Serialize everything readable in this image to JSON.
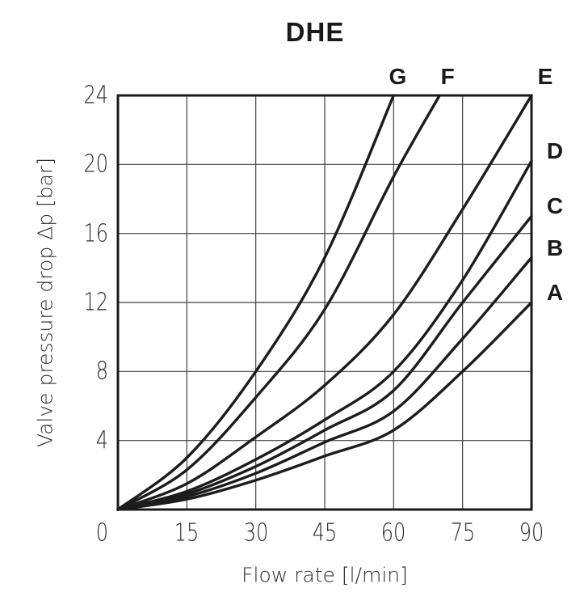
{
  "title": "DHE",
  "colors": {
    "background": "#ffffff",
    "curve": "#1c1c1c",
    "grid": "#3f3f3f",
    "border": "#1a1a1a",
    "text": "#2a2a2a",
    "label_text": "#1a1a1a"
  },
  "chart_data": {
    "type": "line",
    "title": "DHE",
    "xlabel": "Flow rate [l/min]",
    "ylabel": "Valve pressure drop Δp [bar]",
    "xlim": [
      0,
      90
    ],
    "ylim": [
      0,
      24
    ],
    "xticks": [
      0,
      15,
      30,
      45,
      60,
      75,
      90
    ],
    "yticks": [
      4,
      8,
      12,
      16,
      20,
      24
    ],
    "origin_tick_label": "0",
    "grid": "on",
    "legend_position": "labels-at-line-ends",
    "series": [
      {
        "name": "A",
        "label_anchor": "right",
        "x": [
          0,
          15,
          30,
          45,
          60,
          75,
          90
        ],
        "y": [
          0,
          0.6,
          1.7,
          3.1,
          4.6,
          8.0,
          12.0
        ]
      },
      {
        "name": "B",
        "label_anchor": "right",
        "x": [
          0,
          15,
          30,
          45,
          60,
          75,
          90
        ],
        "y": [
          0,
          0.75,
          2.1,
          3.9,
          5.7,
          9.9,
          14.6
        ]
      },
      {
        "name": "C",
        "label_anchor": "right",
        "x": [
          0,
          15,
          30,
          45,
          60,
          75,
          90
        ],
        "y": [
          0,
          0.9,
          2.5,
          4.6,
          6.9,
          12.0,
          17.0
        ]
      },
      {
        "name": "D",
        "label_anchor": "right",
        "x": [
          0,
          15,
          30,
          45,
          60,
          75,
          90
        ],
        "y": [
          0,
          1.05,
          2.9,
          5.2,
          8.0,
          13.3,
          20.2
        ]
      },
      {
        "name": "E",
        "label_anchor": "top",
        "label_dx": 17,
        "x": [
          0,
          15,
          30,
          45,
          60,
          75,
          90
        ],
        "y": [
          0,
          1.5,
          4.2,
          7.2,
          11.3,
          17.4,
          24.0
        ]
      },
      {
        "name": "F",
        "label_anchor": "top",
        "label_dx": 10,
        "x": [
          0,
          15,
          30,
          45,
          60,
          70
        ],
        "y": [
          0,
          2.3,
          6.5,
          11.6,
          19.3,
          24.0
        ]
      },
      {
        "name": "G",
        "label_anchor": "top",
        "label_dx": 5,
        "x": [
          0,
          15,
          30,
          45,
          60
        ],
        "y": [
          0,
          3.0,
          8.0,
          14.6,
          24.0
        ]
      }
    ]
  }
}
